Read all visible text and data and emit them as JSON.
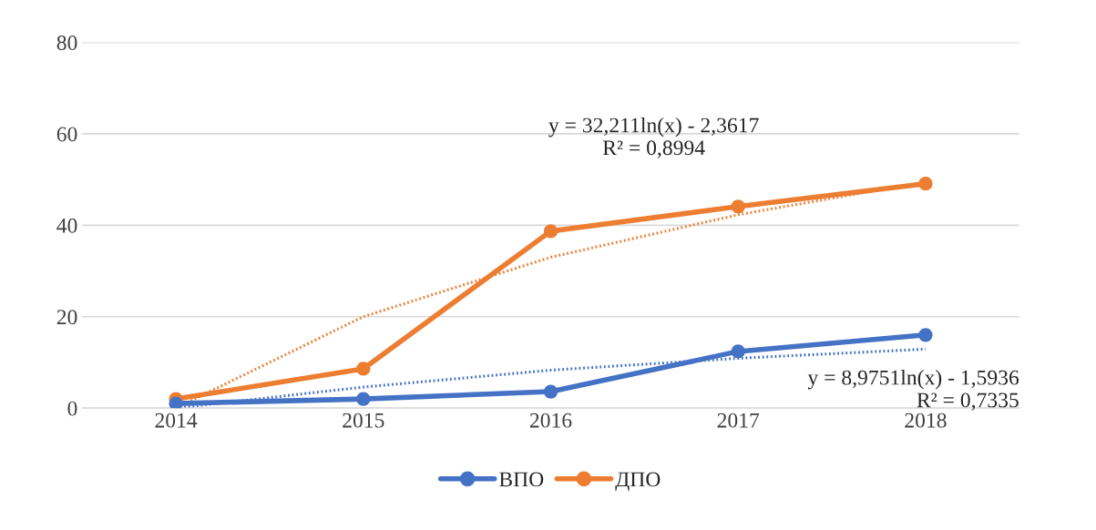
{
  "chart_data": {
    "type": "line",
    "categories": [
      "2014",
      "2015",
      "2016",
      "2017",
      "2018"
    ],
    "series": [
      {
        "name": "ВПО",
        "color": "#4472c4",
        "values": [
          1.0,
          2.0,
          3.6,
          12.4,
          16.0
        ],
        "marker": "circle",
        "line_style": "solid"
      },
      {
        "name": "ДПО",
        "color": "#ed7d31",
        "values": [
          2.0,
          8.6,
          38.7,
          44.1,
          49.1
        ],
        "marker": "circle",
        "line_style": "solid"
      },
      {
        "type": "line",
        "color": "#4472c4",
        "values": [
          0,
          4.6,
          8.3,
          10.9,
          12.9
        ],
        "marker": "none",
        "line_style": "dotted"
      },
      {
        "type": "line",
        "color": "#ed7d31",
        "values": [
          0,
          20.0,
          33.0,
          42.3,
          49.5
        ],
        "marker": "none",
        "line_style": "dotted"
      }
    ],
    "annotations": [
      "y = 32,211ln(x) - 2,3617\nR² = 0,8994",
      "y = 8,9751ln(x) - 1,5936\nR² = 0,7335"
    ],
    "ylim": [
      0,
      80
    ],
    "yticks": [
      0,
      20,
      40,
      60,
      80
    ],
    "grid": "y",
    "legend": "bottom"
  }
}
